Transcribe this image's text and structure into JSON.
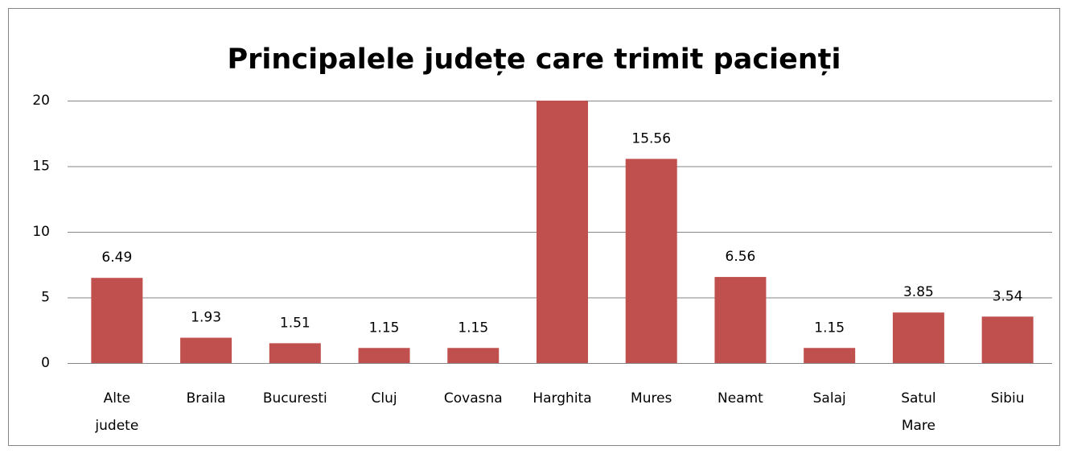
{
  "chart_data": {
    "type": "bar",
    "title": "Principalele județe care trimit pacienți",
    "categories": [
      "Alte judete",
      "Braila",
      "Bucuresti",
      "Cluj",
      "Covasna",
      "Harghita",
      "Mures",
      "Neamt",
      "Salaj",
      "Satul Mare",
      "Sibiu"
    ],
    "values": [
      6.49,
      1.93,
      1.51,
      1.15,
      1.15,
      20,
      15.56,
      6.56,
      1.15,
      3.85,
      3.54
    ],
    "color": "#c0504d",
    "ylim": [
      0,
      20
    ],
    "yticks": [
      0,
      5,
      10,
      15,
      20
    ],
    "grid": true
  }
}
